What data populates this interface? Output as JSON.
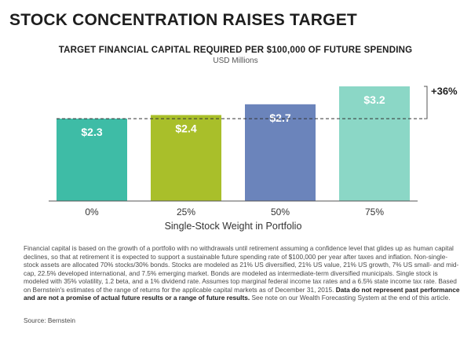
{
  "title": "STOCK CONCENTRATION RAISES TARGET",
  "chart_data": {
    "type": "bar",
    "title": "TARGET FINANCIAL CAPITAL REQUIRED PER $100,000 OF FUTURE SPENDING",
    "unit": "USD Millions",
    "xlabel": "Single-Stock Weight in Portfolio",
    "ylabel": "",
    "categories": [
      "0%",
      "25%",
      "50%",
      "75%"
    ],
    "values": [
      2.3,
      2.4,
      2.7,
      3.2
    ],
    "value_labels": [
      "$2.3",
      "$2.4",
      "$2.7",
      "$3.2"
    ],
    "bar_colors": [
      "#3ebca6",
      "#a9bf2a",
      "#6b84bb",
      "#8bd7c6"
    ],
    "baseline_reference": 2.3,
    "annotation": "+36%",
    "ylim": [
      0,
      3.2
    ],
    "grid": false
  },
  "footnote": {
    "text": "Financial capital is based on the growth of a portfolio with no withdrawals until retirement assuming a confidence level that glides up as human capital declines, so that at retirement it is expected to support a sustainable future spending rate of $100,000 per year after taxes and inflation. Non-single-stock assets are allocated 70% stocks/30% bonds. Stocks are modeled as 21% US diversified, 21% US value, 21% US growth, 7% US small- and mid-cap, 22.5% developed international, and 7.5% emerging market. Bonds are modeled as intermediate-term diversified municipals. Single stock is modeled with 35% volatility, 1.2 beta, and a 1% dividend rate. Assumes top marginal federal income tax rates and a 6.5% state income tax rate. Based on Bernstein's estimates of the range of returns for the applicable capital markets as of December 31, 2015.",
    "bold": "Data do not represent past performance and are not a promise of actual future results or a range of future results.",
    "tail": "See note on our Wealth Forecasting System at the end of this article.",
    "source": "Source: Bernstein"
  }
}
